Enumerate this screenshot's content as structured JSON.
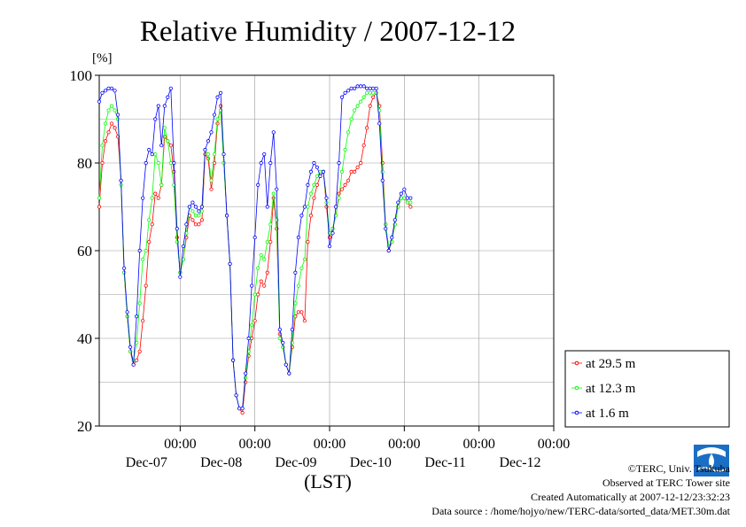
{
  "chart_data": {
    "type": "line",
    "title": "Relative Humidity / 2007-12-12",
    "ylabel": "[%]",
    "xlabel": "(LST)",
    "ylim": [
      20,
      100
    ],
    "y_ticks": [
      20,
      40,
      60,
      80,
      100
    ],
    "x_range_hours": [
      -26,
      120
    ],
    "x_ticks": [
      {
        "hour": 0,
        "time": "00:00",
        "date": "Dec-07"
      },
      {
        "hour": 24,
        "time": "00:00",
        "date": "Dec-08"
      },
      {
        "hour": 48,
        "time": "00:00",
        "date": "Dec-09"
      },
      {
        "hour": 72,
        "time": "00:00",
        "date": "Dec-10"
      },
      {
        "hour": 96,
        "time": "00:00",
        "date": "Dec-11"
      },
      {
        "hour": 120,
        "time": "00:00",
        "date": "Dec-12"
      }
    ],
    "grid": true,
    "legend_position": "bottom-right outside",
    "series": [
      {
        "name": "at 29.5 m",
        "color": "#ff0000",
        "points": [
          [
            -26,
            70
          ],
          [
            -25,
            80
          ],
          [
            -24,
            85
          ],
          [
            -23,
            87
          ],
          [
            -22,
            89
          ],
          [
            -21,
            88
          ],
          [
            -20,
            86
          ],
          [
            -19,
            76
          ],
          [
            -18,
            55
          ],
          [
            -17,
            45
          ],
          [
            -16,
            37
          ],
          [
            -15,
            34
          ],
          [
            -14,
            35
          ],
          [
            -13,
            37
          ],
          [
            -12,
            44
          ],
          [
            -11,
            52
          ],
          [
            -10,
            62
          ],
          [
            -9,
            66
          ],
          [
            -8,
            73
          ],
          [
            -7,
            72
          ],
          [
            -6,
            75
          ],
          [
            -5,
            86
          ],
          [
            -4,
            85
          ],
          [
            -3,
            84
          ],
          [
            -2,
            78
          ],
          [
            -1,
            63
          ],
          [
            0,
            55
          ],
          [
            1,
            58
          ],
          [
            2,
            63
          ],
          [
            3,
            68
          ],
          [
            4,
            67
          ],
          [
            5,
            66
          ],
          [
            6,
            66
          ],
          [
            7,
            67
          ],
          [
            8,
            82
          ],
          [
            9,
            81
          ],
          [
            10,
            74
          ],
          [
            11,
            80
          ],
          [
            12,
            89
          ],
          [
            13,
            93
          ],
          [
            14,
            80
          ],
          [
            15,
            68
          ],
          [
            16,
            57
          ],
          [
            17,
            35
          ],
          [
            18,
            27
          ],
          [
            19,
            24
          ],
          [
            20,
            23
          ],
          [
            21,
            30
          ],
          [
            22,
            36
          ],
          [
            23,
            40
          ],
          [
            24,
            44
          ],
          [
            25,
            50
          ],
          [
            26,
            53
          ],
          [
            27,
            52
          ],
          [
            28,
            55
          ],
          [
            29,
            62
          ],
          [
            30,
            72
          ],
          [
            31,
            65
          ],
          [
            32,
            41
          ],
          [
            33,
            38
          ],
          [
            34,
            34
          ],
          [
            35,
            32
          ],
          [
            36,
            38
          ],
          [
            37,
            45
          ],
          [
            38,
            46
          ],
          [
            39,
            46
          ],
          [
            40,
            44
          ],
          [
            41,
            62
          ],
          [
            42,
            68
          ],
          [
            43,
            72
          ],
          [
            44,
            75
          ],
          [
            45,
            77
          ],
          [
            46,
            78
          ],
          [
            47,
            70
          ],
          [
            48,
            63
          ],
          [
            49,
            65
          ],
          [
            50,
            68
          ],
          [
            51,
            73
          ],
          [
            52,
            74
          ],
          [
            53,
            75
          ],
          [
            54,
            76
          ],
          [
            55,
            78
          ],
          [
            56,
            78
          ],
          [
            57,
            79
          ],
          [
            58,
            80
          ],
          [
            59,
            84
          ],
          [
            60,
            88
          ],
          [
            61,
            93
          ],
          [
            62,
            95
          ],
          [
            63,
            96
          ],
          [
            64,
            93
          ],
          [
            65,
            80
          ],
          [
            66,
            66
          ],
          [
            67,
            60
          ],
          [
            68,
            62
          ],
          [
            69,
            66
          ],
          [
            70,
            70
          ],
          [
            71,
            72
          ],
          [
            72,
            72
          ],
          [
            73,
            71
          ],
          [
            74,
            70
          ]
        ]
      },
      {
        "name": "at 12.3 m",
        "color": "#00ff00",
        "points": [
          [
            -26,
            72
          ],
          [
            -25,
            84
          ],
          [
            -24,
            89
          ],
          [
            -23,
            92
          ],
          [
            -22,
            93
          ],
          [
            -21,
            92
          ],
          [
            -20,
            90
          ],
          [
            -19,
            75
          ],
          [
            -18,
            55
          ],
          [
            -17,
            45
          ],
          [
            -16,
            37
          ],
          [
            -15,
            35
          ],
          [
            -14,
            39
          ],
          [
            -13,
            48
          ],
          [
            -12,
            58
          ],
          [
            -11,
            60
          ],
          [
            -10,
            67
          ],
          [
            -9,
            72
          ],
          [
            -8,
            82
          ],
          [
            -7,
            80
          ],
          [
            -6,
            75
          ],
          [
            -5,
            88
          ],
          [
            -4,
            85
          ],
          [
            -3,
            80
          ],
          [
            -2,
            75
          ],
          [
            -1,
            62
          ],
          [
            0,
            55
          ],
          [
            1,
            58
          ],
          [
            2,
            64
          ],
          [
            3,
            70
          ],
          [
            4,
            69
          ],
          [
            5,
            68
          ],
          [
            6,
            68
          ],
          [
            7,
            69
          ],
          [
            8,
            83
          ],
          [
            9,
            82
          ],
          [
            10,
            76
          ],
          [
            11,
            82
          ],
          [
            12,
            90
          ],
          [
            13,
            92
          ],
          [
            14,
            80
          ],
          [
            15,
            68
          ],
          [
            16,
            57
          ],
          [
            17,
            35
          ],
          [
            18,
            27
          ],
          [
            19,
            24
          ],
          [
            20,
            24
          ],
          [
            21,
            31
          ],
          [
            22,
            37
          ],
          [
            23,
            43
          ],
          [
            24,
            50
          ],
          [
            25,
            56
          ],
          [
            26,
            59
          ],
          [
            27,
            58
          ],
          [
            28,
            62
          ],
          [
            29,
            66
          ],
          [
            30,
            73
          ],
          [
            31,
            67
          ],
          [
            32,
            40
          ],
          [
            33,
            38
          ],
          [
            34,
            34
          ],
          [
            35,
            32
          ],
          [
            36,
            39
          ],
          [
            37,
            48
          ],
          [
            38,
            52
          ],
          [
            39,
            56
          ],
          [
            40,
            58
          ],
          [
            41,
            70
          ],
          [
            42,
            73
          ],
          [
            43,
            75
          ],
          [
            44,
            77
          ],
          [
            45,
            78
          ],
          [
            46,
            78
          ],
          [
            47,
            71
          ],
          [
            48,
            64
          ],
          [
            49,
            65
          ],
          [
            50,
            68
          ],
          [
            51,
            72
          ],
          [
            52,
            78
          ],
          [
            53,
            83
          ],
          [
            54,
            87
          ],
          [
            55,
            90
          ],
          [
            56,
            92
          ],
          [
            57,
            93
          ],
          [
            58,
            94
          ],
          [
            59,
            95
          ],
          [
            60,
            96
          ],
          [
            61,
            96
          ],
          [
            62,
            96
          ],
          [
            63,
            96
          ],
          [
            64,
            92
          ],
          [
            65,
            78
          ],
          [
            66,
            66
          ],
          [
            67,
            61
          ],
          [
            68,
            62
          ],
          [
            69,
            66
          ],
          [
            70,
            70
          ],
          [
            71,
            72
          ],
          [
            72,
            72
          ],
          [
            73,
            71
          ],
          [
            74,
            71
          ]
        ]
      },
      {
        "name": "at 1.6 m",
        "color": "#0000ff",
        "points": [
          [
            -26,
            94
          ],
          [
            -25,
            96
          ],
          [
            -24,
            96.5
          ],
          [
            -23,
            97
          ],
          [
            -22,
            97
          ],
          [
            -21,
            96.5
          ],
          [
            -20,
            91
          ],
          [
            -19,
            76
          ],
          [
            -18,
            56
          ],
          [
            -17,
            46
          ],
          [
            -16,
            38
          ],
          [
            -15,
            34
          ],
          [
            -14,
            45
          ],
          [
            -13,
            60
          ],
          [
            -12,
            72
          ],
          [
            -11,
            80
          ],
          [
            -10,
            83
          ],
          [
            -9,
            82
          ],
          [
            -8,
            90
          ],
          [
            -7,
            93
          ],
          [
            -6,
            84
          ],
          [
            -5,
            93
          ],
          [
            -4,
            95
          ],
          [
            -3,
            97
          ],
          [
            -2,
            80
          ],
          [
            -1,
            65
          ],
          [
            0,
            54
          ],
          [
            1,
            61
          ],
          [
            2,
            66
          ],
          [
            3,
            70
          ],
          [
            4,
            71
          ],
          [
            5,
            70
          ],
          [
            6,
            69
          ],
          [
            7,
            70
          ],
          [
            8,
            83
          ],
          [
            9,
            85
          ],
          [
            10,
            87
          ],
          [
            11,
            91
          ],
          [
            12,
            95
          ],
          [
            13,
            96
          ],
          [
            14,
            82
          ],
          [
            15,
            68
          ],
          [
            16,
            57
          ],
          [
            17,
            35
          ],
          [
            18,
            27
          ],
          [
            19,
            24
          ],
          [
            20,
            24
          ],
          [
            21,
            32
          ],
          [
            22,
            40
          ],
          [
            23,
            52
          ],
          [
            24,
            63
          ],
          [
            25,
            75
          ],
          [
            26,
            80
          ],
          [
            27,
            82
          ],
          [
            28,
            70
          ],
          [
            29,
            80
          ],
          [
            30,
            87
          ],
          [
            31,
            74
          ],
          [
            32,
            42
          ],
          [
            33,
            39
          ],
          [
            34,
            34
          ],
          [
            35,
            32
          ],
          [
            36,
            42
          ],
          [
            37,
            55
          ],
          [
            38,
            63
          ],
          [
            39,
            68
          ],
          [
            40,
            70
          ],
          [
            41,
            75
          ],
          [
            42,
            78
          ],
          [
            43,
            80
          ],
          [
            44,
            79
          ],
          [
            45,
            77
          ],
          [
            46,
            78
          ],
          [
            47,
            72
          ],
          [
            48,
            61
          ],
          [
            49,
            64
          ],
          [
            50,
            70
          ],
          [
            51,
            80
          ],
          [
            52,
            95
          ],
          [
            53,
            96
          ],
          [
            54,
            96.5
          ],
          [
            55,
            97
          ],
          [
            56,
            97
          ],
          [
            57,
            97.5
          ],
          [
            58,
            97.5
          ],
          [
            59,
            97.5
          ],
          [
            60,
            97
          ],
          [
            61,
            97
          ],
          [
            62,
            97
          ],
          [
            63,
            97
          ],
          [
            64,
            89
          ],
          [
            65,
            76
          ],
          [
            66,
            65
          ],
          [
            67,
            60
          ],
          [
            68,
            63
          ],
          [
            69,
            67
          ],
          [
            70,
            71
          ],
          [
            71,
            73
          ],
          [
            72,
            74
          ],
          [
            73,
            72
          ],
          [
            74,
            72
          ]
        ]
      }
    ]
  },
  "credits": {
    "copyright": "©TERC, Univ. Tsukuba",
    "observed": "Observed at TERC Tower site",
    "created": "Created Automatically at 2007-12-12/23:32:23",
    "source": "Data source : /home/hojyo/new/TERC-data/sorted_data/MET.30m.dat",
    "logo_text": "TERC"
  }
}
